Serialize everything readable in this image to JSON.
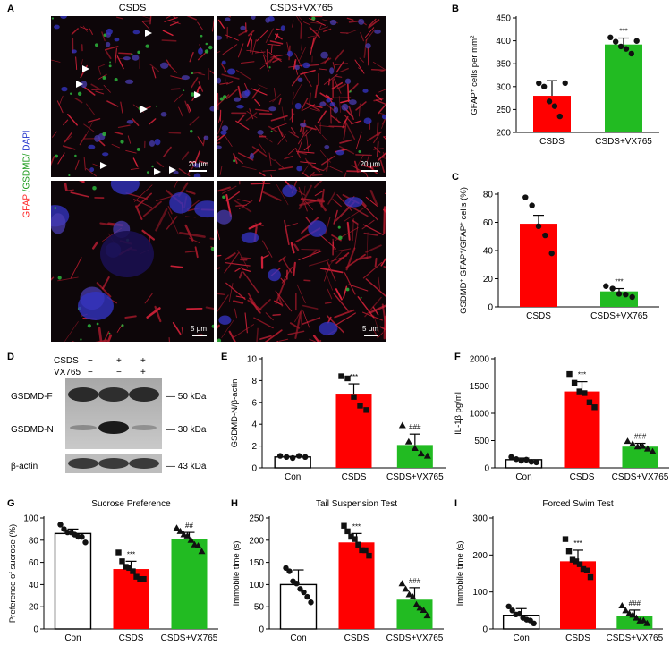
{
  "panel_letters": {
    "a": "A",
    "b": "B",
    "c": "C",
    "d": "D",
    "e": "E",
    "f": "F",
    "g": "G",
    "h": "H",
    "i": "I"
  },
  "panel_a": {
    "col1": "CSDS",
    "col2": "CSDS+VX765",
    "stain_gfap": "GFAP",
    "stain_gsdmd": " /GSDMD/",
    "stain_dapi": " DAPI",
    "scale_top_left": "20 μm",
    "scale_top_right": "20 μm",
    "scale_bot_left": "5 μm",
    "scale_bot_right": "5 μm"
  },
  "panel_d": {
    "row_csds": "CSDS",
    "row_vx": "VX765",
    "csds_signs": [
      "−",
      "+",
      "+"
    ],
    "vx_signs": [
      "−",
      "−",
      "+"
    ],
    "bands": [
      {
        "name": "GSDMD-F",
        "kda": "50 kDa"
      },
      {
        "name": "GSDMD-N",
        "kda": "30 kDa"
      },
      {
        "name": "β-actin",
        "kda": "43 kDa"
      }
    ]
  },
  "colors": {
    "red": "#ff0000",
    "green": "#22bb22",
    "white": "#ffffff"
  },
  "chart_data": [
    {
      "id": "B",
      "type": "bar",
      "categories": [
        "CSDS",
        "CSDS+VX765"
      ],
      "values": [
        280,
        392
      ],
      "errors": [
        33,
        14
      ],
      "points": [
        [
          305,
          300,
          270,
          255,
          235,
          310
        ],
        [
          405,
          398,
          390,
          380,
          372,
          402
        ]
      ],
      "colors": [
        "#ff0000",
        "#22bb22"
      ],
      "ylabel_main": "GFAP",
      "ylabel_sup": "+",
      "ylabel_rest": " cells per mm",
      "ylabel_sup2": "2",
      "ylim": [
        200,
        450
      ],
      "yticks": [
        200,
        250,
        300,
        350,
        400,
        450
      ],
      "sig": [
        "",
        "***"
      ],
      "point_marker": "circle"
    },
    {
      "id": "C",
      "type": "bar",
      "categories": [
        "CSDS",
        "CSDS+VX765"
      ],
      "values": [
        59,
        11
      ],
      "errors": [
        6,
        2
      ],
      "points": [
        [
          77,
          72,
          58,
          50,
          38
        ],
        [
          14,
          13,
          10,
          8,
          7
        ]
      ],
      "colors": [
        "#ff0000",
        "#22bb22"
      ],
      "ylabel_main": "GSDMD",
      "ylabel_sup": "+",
      "ylabel_rest": " GFAP",
      "ylabel_sup2": "+",
      "ylabel_rest2": "/GFAP",
      "ylabel_sup3": "+",
      "ylabel_rest3": " cells (%)",
      "ylim": [
        0,
        80
      ],
      "yticks": [
        0,
        20,
        40,
        60,
        80
      ],
      "sig": [
        "",
        "***"
      ],
      "point_marker": "circle"
    },
    {
      "id": "E",
      "type": "bar",
      "categories": [
        "Con",
        "CSDS",
        "CSDS+VX765"
      ],
      "values": [
        1.0,
        6.8,
        2.1
      ],
      "errors": [
        0.05,
        0.9,
        1.0
      ],
      "points": [
        [
          1,
          1,
          1,
          1,
          1
        ],
        [
          8.3,
          8.2,
          6.6,
          5.6,
          5.3
        ],
        [
          3.8,
          2.4,
          1.9,
          1.2,
          1.1
        ]
      ],
      "markers": [
        "circle",
        "square",
        "triangle"
      ],
      "colors": [
        "#ffffff",
        "#ff0000",
        "#22bb22"
      ],
      "ylabel": "GSDMD-N/β-actin",
      "ylim": [
        0,
        10
      ],
      "yticks": [
        0,
        2,
        4,
        6,
        8,
        10
      ],
      "sig": [
        "",
        "***",
        "###"
      ]
    },
    {
      "id": "F",
      "type": "bar",
      "categories": [
        "Con",
        "CSDS",
        "CSDS+VX765"
      ],
      "values": [
        150,
        1400,
        390
      ],
      "errors": [
        30,
        180,
        60
      ],
      "points": [
        [
          180,
          160,
          150,
          130,
          110,
          120
        ],
        [
          1700,
          1560,
          1420,
          1350,
          1200,
          1130
        ],
        [
          470,
          440,
          410,
          380,
          350,
          320
        ]
      ],
      "markers": [
        "circle",
        "square",
        "triangle"
      ],
      "colors": [
        "#ffffff",
        "#ff0000",
        "#22bb22"
      ],
      "ylabel": "IL-1β pg/ml",
      "ylim": [
        0,
        2000
      ],
      "yticks": [
        0,
        500,
        1000,
        1500,
        2000
      ],
      "sig": [
        "",
        "***",
        "###"
      ]
    },
    {
      "id": "G",
      "type": "bar",
      "title": "Sucrose Preference",
      "categories": [
        "Con",
        "CSDS",
        "CSDS+VX765"
      ],
      "values": [
        86,
        54,
        81
      ],
      "errors": [
        4,
        7,
        6
      ],
      "points": [
        [
          93,
          90,
          88,
          86,
          85,
          84,
          82,
          78
        ],
        [
          68,
          61,
          57,
          54,
          52,
          48,
          44,
          45
        ],
        [
          90,
          88,
          86,
          83,
          80,
          77,
          74,
          70
        ]
      ],
      "markers": [
        "circle",
        "square",
        "triangle"
      ],
      "colors": [
        "#ffffff",
        "#ff0000",
        "#22bb22"
      ],
      "ylabel": "Preference of sucrose (%)",
      "ylim": [
        0,
        100
      ],
      "yticks": [
        0,
        20,
        40,
        60,
        80,
        100
      ],
      "sig": [
        "",
        "***",
        "##"
      ]
    },
    {
      "id": "H",
      "type": "bar",
      "title": "Tail Suspension Test",
      "categories": [
        "Con",
        "CSDS",
        "CSDS+VX765"
      ],
      "values": [
        100,
        195,
        66
      ],
      "errors": [
        33,
        20,
        27
      ],
      "points": [
        [
          135,
          130,
          110,
          100,
          90,
          85,
          70,
          60
        ],
        [
          230,
          220,
          210,
          200,
          190,
          180,
          175,
          165
        ],
        [
          100,
          90,
          80,
          70,
          55,
          50,
          40,
          30
        ]
      ],
      "markers": [
        "circle",
        "square",
        "triangle"
      ],
      "colors": [
        "#ffffff",
        "#ff0000",
        "#22bb22"
      ],
      "ylabel": "Immobile time (s)",
      "ylim": [
        0,
        250
      ],
      "yticks": [
        0,
        50,
        100,
        150,
        200,
        250
      ],
      "sig": [
        "",
        "***",
        "###"
      ]
    },
    {
      "id": "I",
      "type": "bar",
      "title": "Forced Swim Test",
      "categories": [
        "Con",
        "CSDS",
        "CSDS+VX765"
      ],
      "values": [
        37,
        183,
        34
      ],
      "errors": [
        18,
        30,
        17
      ],
      "points": [
        [
          58,
          50,
          42,
          38,
          30,
          28,
          20,
          15
        ],
        [
          240,
          210,
          190,
          180,
          175,
          165,
          155,
          140
        ],
        [
          60,
          50,
          45,
          35,
          30,
          25,
          20,
          15
        ]
      ],
      "markers": [
        "circle",
        "square",
        "triangle"
      ],
      "colors": [
        "#ffffff",
        "#ff0000",
        "#22bb22"
      ],
      "ylabel": "Immobile time (s)",
      "ylim": [
        0,
        300
      ],
      "yticks": [
        0,
        100,
        200,
        300
      ],
      "sig": [
        "",
        "***",
        "###"
      ]
    }
  ]
}
